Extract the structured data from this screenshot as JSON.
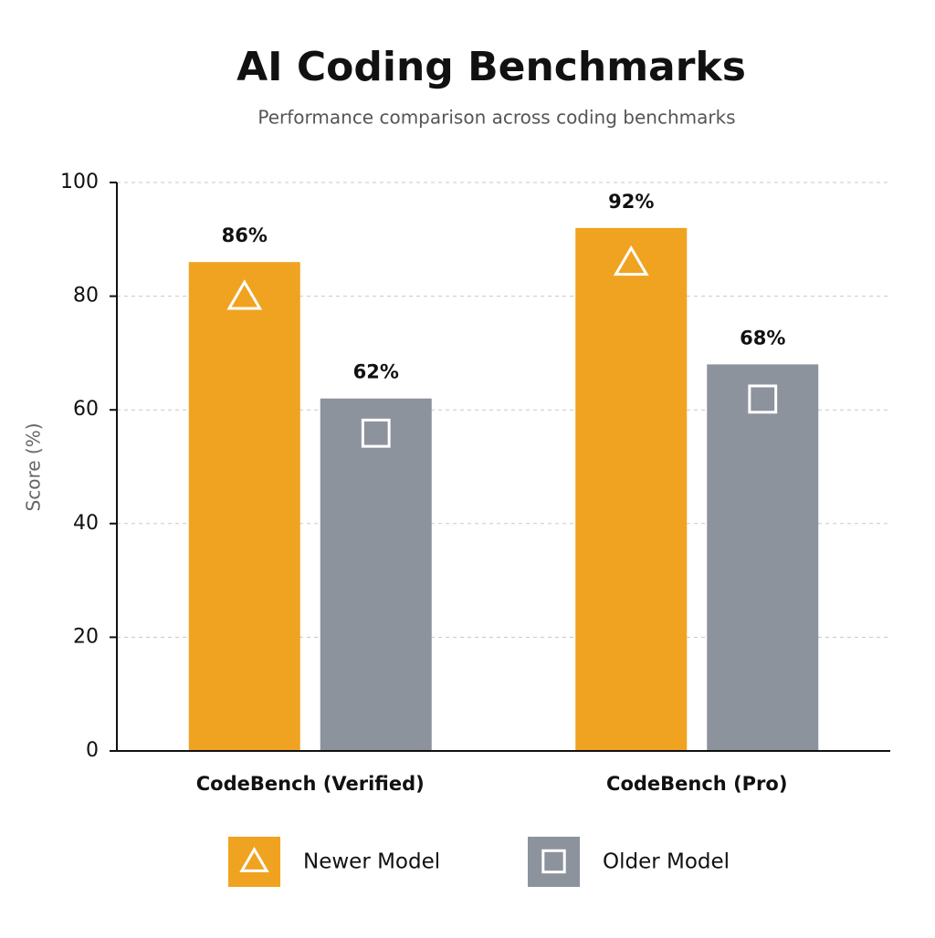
{
  "chart_data": {
    "type": "bar",
    "title": "AI Coding Benchmarks",
    "subtitle": "Performance comparison across coding benchmarks",
    "y_label": "Score (%)",
    "categories": [
      "CodeBench (Verified)",
      "CodeBench (Pro)"
    ],
    "series": [
      {
        "name": "Newer Model",
        "color": "#f0a320",
        "marker": "triangle",
        "values": [
          86,
          92
        ],
        "value_labels": [
          "86%",
          "92%"
        ]
      },
      {
        "name": "Older Model",
        "color": "#8c939c",
        "marker": "square",
        "values": [
          62,
          68
        ],
        "value_labels": [
          "62%",
          "68%"
        ]
      }
    ],
    "ylim": [
      0,
      100
    ],
    "yticks": [
      0,
      20,
      40,
      60,
      80,
      100
    ],
    "grid": true,
    "legend": "bottom"
  }
}
